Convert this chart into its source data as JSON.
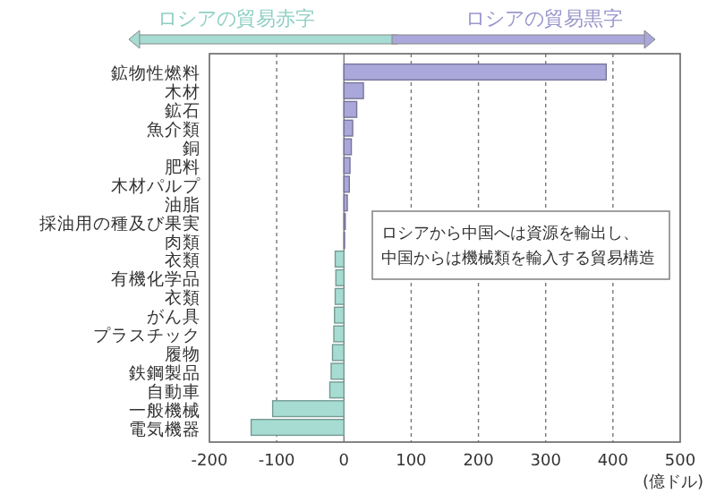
{
  "chart_data": {
    "type": "bar",
    "orientation": "horizontal",
    "xlabel": "(億ドル)",
    "categories": [
      "鉱物性燃料",
      "木材",
      "鉱石",
      "魚介類",
      "銅",
      "肥料",
      "木材パルプ",
      "油脂",
      "採油用の種及び果実",
      "肉類",
      "衣類",
      "有機化学品",
      "衣類",
      "がん具",
      "プラスチック",
      "履物",
      "鉄鋼製品",
      "自動車",
      "一般機械",
      "電気機器"
    ],
    "values": [
      390,
      29,
      19,
      13,
      11,
      9,
      8,
      5,
      2,
      1,
      -13,
      -12,
      -13,
      -14,
      -15,
      -17,
      -19,
      -21,
      -106,
      -138
    ],
    "colors": [
      "#aaa7da",
      "#aaa7da",
      "#aaa7da",
      "#aaa7da",
      "#aaa7da",
      "#aaa7da",
      "#aaa7da",
      "#aaa7da",
      "#aaa7da",
      "#aaa7da",
      "#a6dcd2",
      "#a6dcd2",
      "#a6dcd2",
      "#a6dcd2",
      "#a6dcd2",
      "#a6dcd2",
      "#a6dcd2",
      "#a6dcd2",
      "#a6dcd2",
      "#a6dcd2"
    ],
    "xlim": [
      -200,
      500
    ],
    "xticks": [
      -200,
      -100,
      0,
      100,
      200,
      300,
      400,
      500
    ],
    "grid": "x",
    "annotations": [
      "ロシアの貿易赤字",
      "ロシアの貿易黒字",
      "ロシアから中国へは資源を輸出し、中国からは機械類を輸入する貿易構造"
    ]
  }
}
